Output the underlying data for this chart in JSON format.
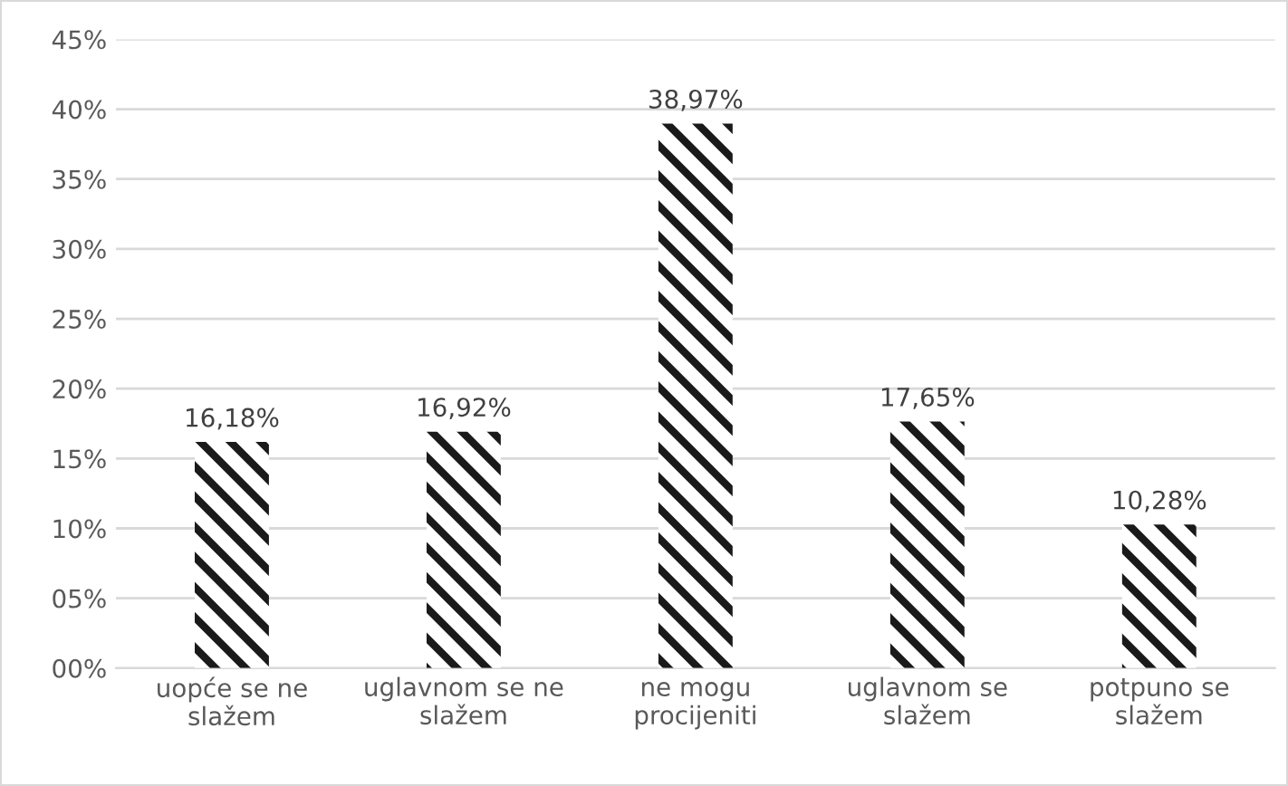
{
  "chart_data": {
    "type": "bar",
    "categories": [
      "uopće se ne\nslažem",
      "uglavnom se ne\nslažem",
      "ne mogu\nprocijeniti",
      "uglavnom se\nslažem",
      "potpuno se\nslažem"
    ],
    "values": [
      16.18,
      16.92,
      38.97,
      17.65,
      10.28
    ],
    "value_labels": [
      "16,18%",
      "16,92%",
      "38,97%",
      "17,65%",
      "10,28%"
    ],
    "color": "#1a1a1a",
    "ylim": [
      0,
      45
    ],
    "yticks": [
      {
        "value": 0,
        "label": "00%"
      },
      {
        "value": 5,
        "label": "05%"
      },
      {
        "value": 10,
        "label": "10%"
      },
      {
        "value": 15,
        "label": "15%"
      },
      {
        "value": 20,
        "label": "20%"
      },
      {
        "value": 25,
        "label": "25%"
      },
      {
        "value": 30,
        "label": "30%"
      },
      {
        "value": 35,
        "label": "35%"
      },
      {
        "value": 40,
        "label": "40%"
      },
      {
        "value": 45,
        "label": "45%"
      }
    ],
    "grid": "y",
    "legend": false
  }
}
